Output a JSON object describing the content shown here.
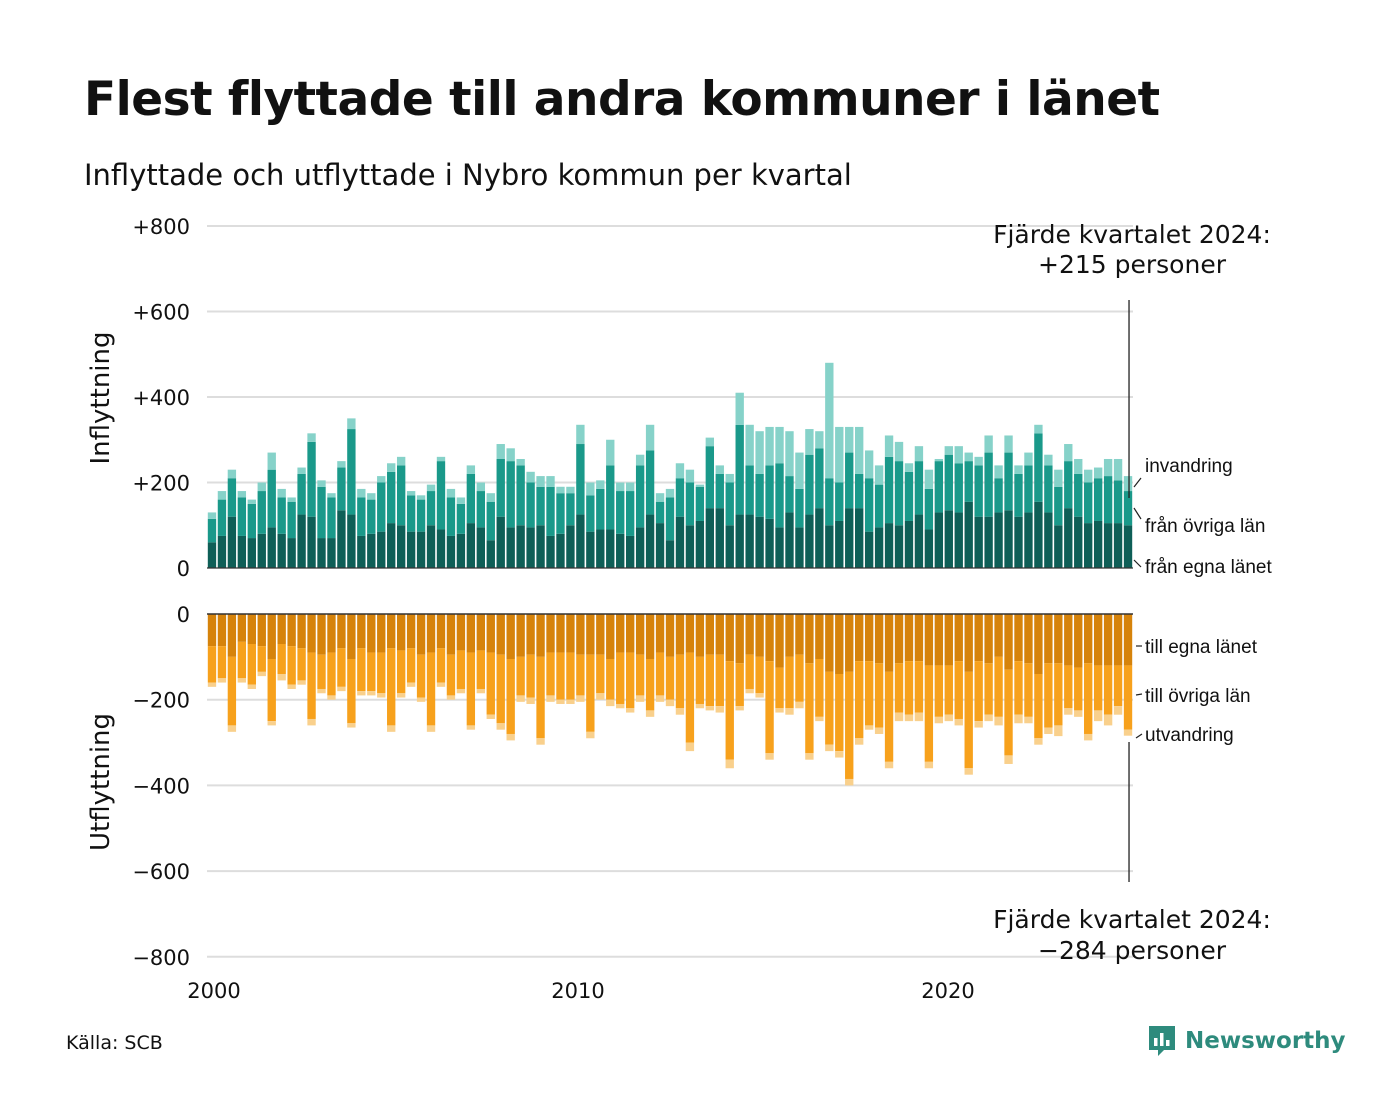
{
  "title": "Flest flyttade till andra kommuner i länet",
  "subtitle": "Inflyttade och utflyttade i Nybro kommun per kvartal",
  "source": "Källa: SCB",
  "brand": "Newsworthy",
  "colors": {
    "in_own": "#0e5f57",
    "in_other": "#1a998a",
    "in_imm": "#86d2c9",
    "out_own": "#d6830b",
    "out_other": "#f7a11c",
    "out_emi": "#f9d08c",
    "grid": "#dddddd",
    "brand": "#2e8b7d"
  },
  "annotations": {
    "top": [
      "Fjärde kvartalet 2024:",
      "+215 personer"
    ],
    "bottom": [
      "Fjärde kvartalet 2024:",
      "−284 personer"
    ]
  },
  "chart_data": {
    "type": "bar",
    "stacked": true,
    "x_start": "2000 Q1",
    "x_end": "2024 Q4",
    "x_ticks": [
      "2000",
      "2010",
      "2020"
    ],
    "panels": [
      {
        "name": "inflow",
        "ylabel": "Inflyttning",
        "ylim": [
          0,
          800
        ],
        "ticks": [
          0,
          200,
          400,
          600,
          800
        ],
        "tick_labels": [
          "0",
          "+200",
          "+400",
          "+600",
          "+800"
        ],
        "series": [
          {
            "name": "från egna länet",
            "values": [
              60,
              75,
              120,
              75,
              70,
              80,
              95,
              80,
              70,
              125,
              120,
              70,
              70,
              135,
              125,
              75,
              80,
              85,
              105,
              100,
              85,
              85,
              100,
              90,
              75,
              80,
              105,
              95,
              65,
              120,
              95,
              100,
              95,
              100,
              75,
              80,
              100,
              125,
              85,
              90,
              90,
              80,
              75,
              95,
              125,
              105,
              65,
              120,
              100,
              110,
              140,
              140,
              100,
              125,
              125,
              120,
              115,
              95,
              130,
              95,
              125,
              140,
              100,
              110,
              140,
              140,
              85,
              95,
              105,
              100,
              110,
              125,
              90,
              130,
              135,
              130,
              155,
              120,
              120,
              130,
              135,
              120,
              130,
              155,
              130,
              100,
              140,
              120,
              105,
              110,
              105,
              105,
              100
            ]
          },
          {
            "name": "från övriga län",
            "values": [
              55,
              85,
              90,
              90,
              80,
              100,
              135,
              85,
              85,
              95,
              175,
              120,
              95,
              100,
              200,
              90,
              80,
              115,
              120,
              140,
              85,
              75,
              80,
              160,
              90,
              70,
              115,
              85,
              90,
              135,
              155,
              140,
              105,
              90,
              115,
              95,
              75,
              165,
              85,
              95,
              150,
              100,
              105,
              145,
              150,
              50,
              100,
              90,
              100,
              80,
              145,
              80,
              100,
              210,
              115,
              100,
              125,
              150,
              85,
              90,
              140,
              140,
              110,
              90,
              130,
              80,
              125,
              100,
              155,
              150,
              115,
              125,
              95,
              120,
              130,
              115,
              95,
              120,
              150,
              80,
              135,
              100,
              110,
              160,
              110,
              90,
              110,
              100,
              95,
              100,
              110,
              100,
              80
            ]
          },
          {
            "name": "invandring",
            "values": [
              15,
              20,
              20,
              15,
              10,
              20,
              40,
              20,
              10,
              15,
              20,
              15,
              10,
              15,
              25,
              20,
              15,
              15,
              20,
              20,
              10,
              10,
              15,
              10,
              20,
              15,
              20,
              20,
              20,
              35,
              30,
              15,
              25,
              25,
              25,
              15,
              15,
              45,
              30,
              20,
              60,
              20,
              20,
              25,
              60,
              20,
              20,
              35,
              30,
              5,
              20,
              20,
              20,
              75,
              95,
              100,
              90,
              85,
              105,
              85,
              60,
              40,
              270,
              130,
              60,
              110,
              65,
              45,
              50,
              45,
              20,
              35,
              45,
              5,
              20,
              40,
              20,
              20,
              40,
              30,
              40,
              20,
              30,
              20,
              25,
              40,
              40,
              35,
              30,
              25,
              40,
              50,
              35
            ]
          }
        ]
      },
      {
        "name": "outflow",
        "ylabel": "Utflyttning",
        "ylim": [
          -800,
          0
        ],
        "ticks": [
          0,
          -200,
          -400,
          -600,
          -800
        ],
        "tick_labels": [
          "0",
          "−200",
          "−400",
          "−600",
          "−800"
        ],
        "series": [
          {
            "name": "till egna länet",
            "values": [
              -75,
              -75,
              -100,
              -65,
              -70,
              -75,
              -105,
              -70,
              -75,
              -80,
              -90,
              -95,
              -90,
              -80,
              -105,
              -80,
              -90,
              -90,
              -80,
              -85,
              -80,
              -95,
              -90,
              -80,
              -95,
              -85,
              -90,
              -85,
              -90,
              -95,
              -105,
              -100,
              -95,
              -100,
              -90,
              -90,
              -90,
              -95,
              -95,
              -95,
              -105,
              -90,
              -90,
              -95,
              -105,
              -90,
              -100,
              -95,
              -90,
              -100,
              -95,
              -95,
              -110,
              -115,
              -95,
              -100,
              -110,
              -125,
              -100,
              -95,
              -115,
              -105,
              -135,
              -140,
              -135,
              -110,
              -110,
              -115,
              -135,
              -115,
              -110,
              -110,
              -120,
              -120,
              -120,
              -110,
              -135,
              -110,
              -115,
              -100,
              -130,
              -110,
              -115,
              -140,
              -115,
              -115,
              -120,
              -125,
              -115,
              -120,
              -120,
              -120,
              -120
            ]
          },
          {
            "name": "till övriga län",
            "values": [
              -85,
              -75,
              -160,
              -85,
              -95,
              -60,
              -145,
              -70,
              -90,
              -75,
              -155,
              -80,
              -100,
              -90,
              -150,
              -100,
              -90,
              -95,
              -180,
              -100,
              -80,
              -100,
              -170,
              -80,
              -95,
              -90,
              -170,
              -90,
              -145,
              -160,
              -175,
              -90,
              -100,
              -190,
              -100,
              -110,
              -110,
              -95,
              -180,
              -90,
              -95,
              -120,
              -130,
              -95,
              -120,
              -100,
              -100,
              -125,
              -210,
              -110,
              -120,
              -120,
              -230,
              -100,
              -80,
              -85,
              -215,
              -95,
              -120,
              -110,
              -210,
              -135,
              -170,
              -180,
              -250,
              -180,
              -150,
              -150,
              -210,
              -115,
              -125,
              -120,
              -225,
              -120,
              -115,
              -135,
              -225,
              -140,
              -120,
              -140,
              -200,
              -125,
              -125,
              -150,
              -150,
              -145,
              -100,
              -100,
              -165,
              -105,
              -115,
              -95,
              -150
            ]
          },
          {
            "name": "utvandring",
            "values": [
              -10,
              -10,
              -15,
              -10,
              -10,
              -10,
              -10,
              -15,
              -10,
              -10,
              -15,
              -10,
              -10,
              -10,
              -10,
              -10,
              -10,
              -10,
              -15,
              -10,
              -10,
              -10,
              -15,
              -10,
              -10,
              -10,
              -10,
              -10,
              -10,
              -15,
              -15,
              -15,
              -15,
              -15,
              -15,
              -10,
              -10,
              -15,
              -15,
              -15,
              -15,
              -10,
              -10,
              -15,
              -15,
              -15,
              -15,
              -15,
              -20,
              -10,
              -10,
              -15,
              -20,
              -10,
              -10,
              -10,
              -15,
              -10,
              -15,
              -15,
              -15,
              -10,
              -15,
              -15,
              -15,
              -15,
              -10,
              -15,
              -15,
              -20,
              -15,
              -20,
              -15,
              -15,
              -15,
              -15,
              -15,
              -15,
              -15,
              -20,
              -20,
              -20,
              -15,
              -15,
              -15,
              -25,
              -15,
              -15,
              -15,
              -25,
              -25,
              -20,
              -14
            ]
          }
        ]
      }
    ]
  }
}
